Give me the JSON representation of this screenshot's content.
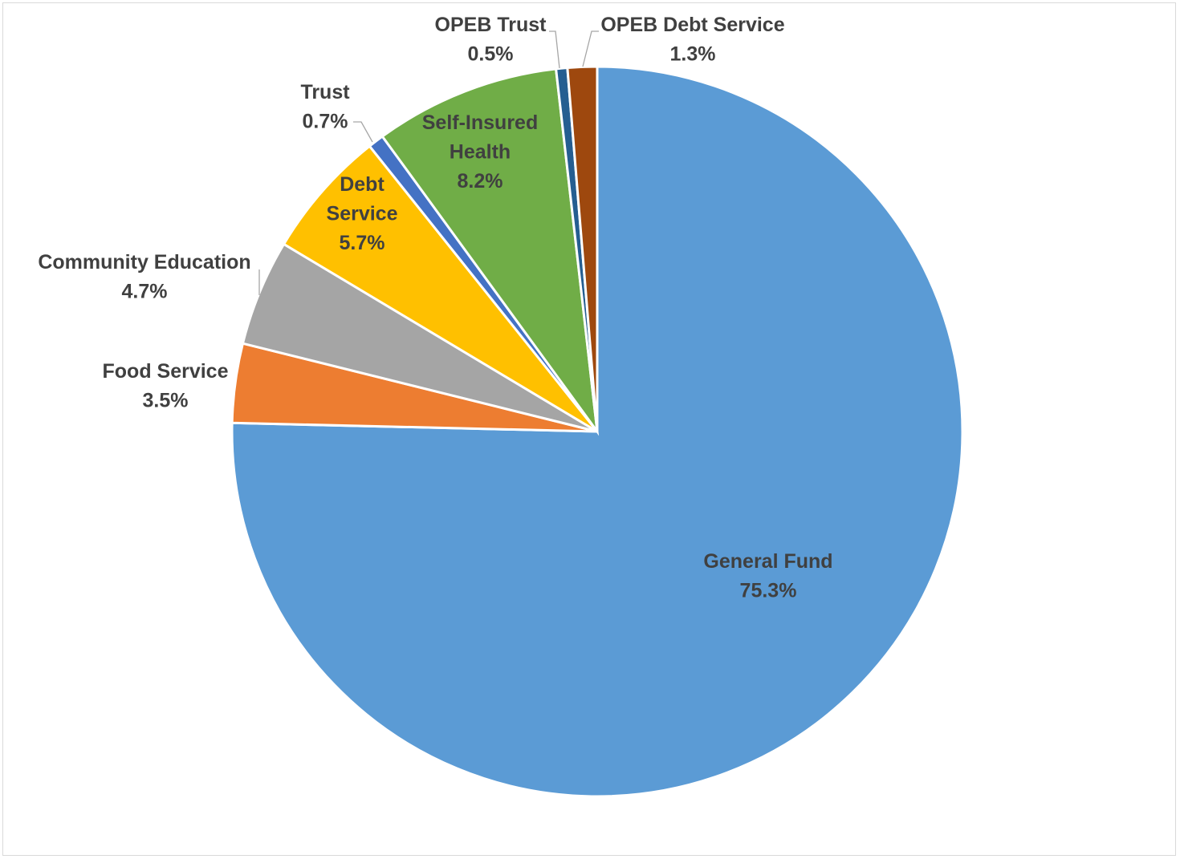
{
  "chart_data": {
    "type": "pie",
    "title": "",
    "start_angle_deg": 0,
    "direction": "clockwise",
    "slices": [
      {
        "name": "General Fund",
        "value": 75.3,
        "value_label": "75.3%",
        "color": "#5b9bd5"
      },
      {
        "name": "Food Service",
        "value": 3.5,
        "value_label": "3.5%",
        "color": "#ed7d31"
      },
      {
        "name": "Community Education",
        "value": 4.7,
        "value_label": "4.7%",
        "color": "#a5a5a5"
      },
      {
        "name": "Debt Service",
        "value": 5.7,
        "value_label": "5.7%",
        "color": "#ffc000"
      },
      {
        "name": "Trust",
        "value": 0.7,
        "value_label": "0.7%",
        "color": "#4472c4"
      },
      {
        "name": "Self-Insured Health",
        "value": 8.2,
        "value_label": "8.2%",
        "color": "#70ad47"
      },
      {
        "name": "OPEB Trust",
        "value": 0.5,
        "value_label": "0.5%",
        "color": "#255e91"
      },
      {
        "name": "OPEB Debt Service",
        "value": 1.3,
        "value_label": "1.3%",
        "color": "#9e480e"
      }
    ]
  }
}
